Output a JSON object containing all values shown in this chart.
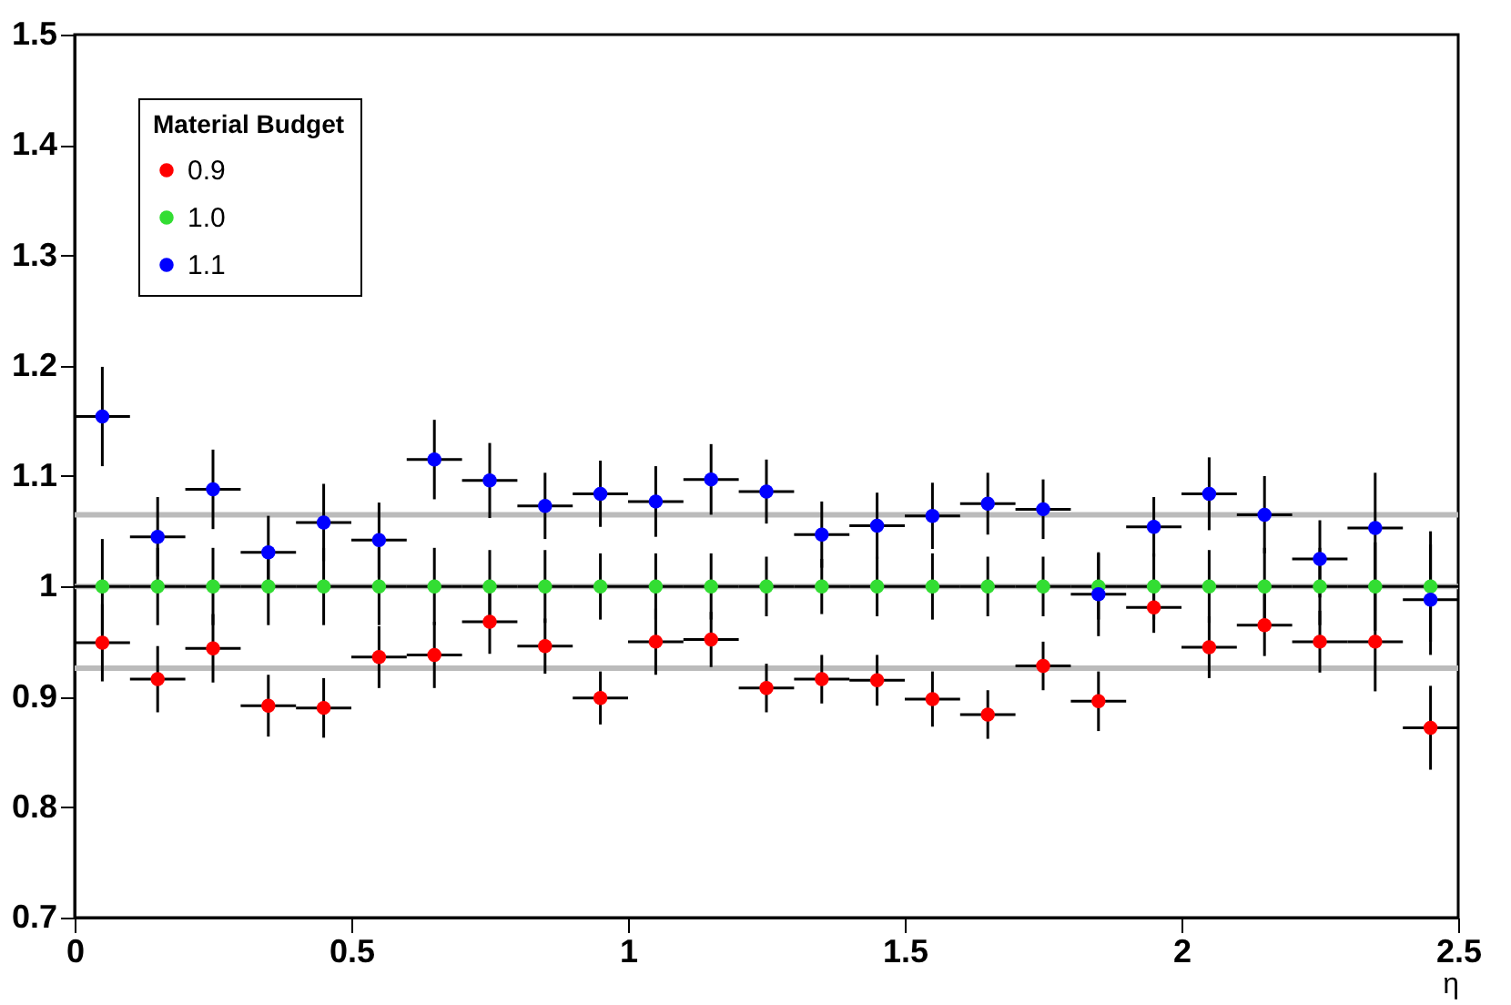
{
  "chart_data": {
    "type": "scatter",
    "xlabel": "η",
    "legend_title": "Material Budget",
    "legend": "top left",
    "marker": "circle",
    "grid": false,
    "xlim": [
      0,
      2.5
    ],
    "xticks": [
      0,
      0.5,
      1,
      1.5,
      2,
      2.5
    ],
    "ylim": [
      0.7,
      1.5
    ],
    "yticks": [
      0.7,
      0.8,
      0.9,
      1,
      1.1,
      1.2,
      1.3,
      1.4,
      1.5
    ],
    "x": [
      0.05,
      0.15,
      0.25,
      0.35,
      0.45,
      0.55,
      0.65,
      0.75,
      0.85,
      0.95,
      1.05,
      1.15,
      1.25,
      1.35,
      1.45,
      1.55,
      1.65,
      1.75,
      1.85,
      1.95,
      2.05,
      2.15,
      2.25,
      2.35,
      2.45
    ],
    "series": [
      {
        "name": "0.9",
        "color": "#ff0000",
        "values": [
          0.949,
          0.916,
          0.944,
          0.892,
          0.89,
          0.936,
          0.938,
          0.968,
          0.946,
          0.899,
          0.95,
          0.952,
          0.908,
          0.916,
          0.915,
          0.898,
          0.884,
          0.928,
          0.896,
          0.981,
          0.945,
          0.965,
          0.95,
          0.95,
          0.872
        ],
        "errors": [
          0.035,
          0.03,
          0.031,
          0.028,
          0.027,
          0.028,
          0.03,
          0.029,
          0.025,
          0.024,
          0.03,
          0.025,
          0.022,
          0.022,
          0.023,
          0.025,
          0.022,
          0.022,
          0.027,
          0.023,
          0.028,
          0.028,
          0.028,
          0.045,
          0.038
        ],
        "xerrors": [
          0.05,
          0.05,
          0.05,
          0.05,
          0.05,
          0.05,
          0.05,
          0.05,
          0.05,
          0.05,
          0.05,
          0.05,
          0.05,
          0.05,
          0.05,
          0.05,
          0.05,
          0.05,
          0.05,
          0.05,
          0.05,
          0.05,
          0.05,
          0.05,
          0.05
        ]
      },
      {
        "name": "1.0",
        "color": "#33dd33",
        "values": [
          1,
          1,
          1,
          1,
          1,
          1,
          1,
          1,
          1,
          1,
          1,
          1,
          1,
          1,
          1,
          1,
          1,
          1,
          1,
          1,
          1,
          1,
          1,
          1,
          1
        ],
        "errors": [
          0.043,
          0.035,
          0.035,
          0.035,
          0.035,
          0.035,
          0.035,
          0.033,
          0.033,
          0.03,
          0.03,
          0.03,
          0.027,
          0.025,
          0.027,
          0.03,
          0.027,
          0.027,
          0.03,
          0.03,
          0.033,
          0.035,
          0.035,
          0.04,
          0.05
        ],
        "xerrors": [
          0.05,
          0.05,
          0.05,
          0.05,
          0.05,
          0.05,
          0.05,
          0.05,
          0.05,
          0.05,
          0.05,
          0.05,
          0.05,
          0.05,
          0.05,
          0.05,
          0.05,
          0.05,
          0.05,
          0.05,
          0.05,
          0.05,
          0.05,
          0.05,
          0.05
        ]
      },
      {
        "name": "1.1",
        "color": "#0000ff",
        "values": [
          1.154,
          1.045,
          1.088,
          1.031,
          1.058,
          1.042,
          1.115,
          1.096,
          1.073,
          1.084,
          1.077,
          1.097,
          1.086,
          1.047,
          1.055,
          1.064,
          1.075,
          1.07,
          0.993,
          1.054,
          1.084,
          1.065,
          1.025,
          1.053,
          0.988
        ],
        "errors": [
          0.045,
          0.036,
          0.036,
          0.033,
          0.035,
          0.034,
          0.036,
          0.034,
          0.03,
          0.03,
          0.032,
          0.032,
          0.029,
          0.03,
          0.03,
          0.03,
          0.028,
          0.027,
          0.038,
          0.027,
          0.033,
          0.035,
          0.035,
          0.05,
          0.05
        ],
        "xerrors": [
          0.05,
          0.05,
          0.05,
          0.05,
          0.05,
          0.05,
          0.05,
          0.05,
          0.05,
          0.05,
          0.05,
          0.05,
          0.05,
          0.05,
          0.05,
          0.05,
          0.05,
          0.05,
          0.05,
          0.05,
          0.05,
          0.05,
          0.05,
          0.05,
          0.05
        ]
      }
    ],
    "ref_lines": [
      {
        "axis": "y",
        "value": 1.065,
        "color": "#bbbbbb"
      },
      {
        "axis": "y",
        "value": 1,
        "color": "#bbbbbb"
      },
      {
        "axis": "y",
        "value": 0.926,
        "color": "#bbbbbb"
      }
    ]
  }
}
